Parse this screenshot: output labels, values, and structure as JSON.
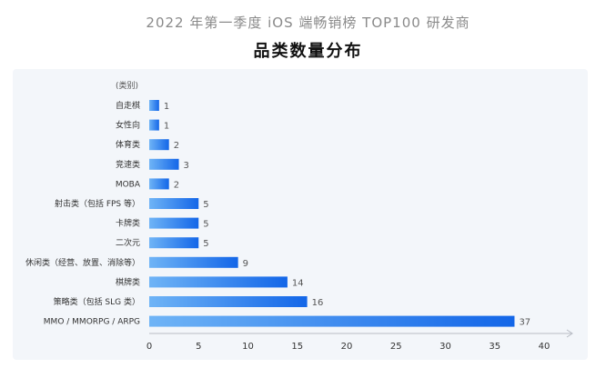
{
  "header": {
    "subtitle": "2022 年第一季度 iOS 端畅销榜 TOP100 研发商",
    "title": "品类数量分布"
  },
  "chart_data": {
    "type": "bar",
    "orientation": "horizontal",
    "title": "品类数量分布",
    "subtitle": "2022 年第一季度 iOS 端畅销榜 TOP100 研发商",
    "category_header": "(类别)",
    "categories": [
      "自走棋",
      "女性向",
      "体育类",
      "竞速类",
      "MOBA",
      "射击类（包括 FPS 等）",
      "卡牌类",
      "二次元",
      "休闲类（经营、放置、消除等）",
      "棋牌类",
      "策略类（包括 SLG 类）",
      "MMO / MMORPG / ARPG"
    ],
    "values": [
      1,
      1,
      2,
      3,
      2,
      5,
      5,
      5,
      9,
      14,
      16,
      37
    ],
    "xlim": [
      0,
      40
    ],
    "xticks": [
      0,
      5,
      10,
      15,
      20,
      25,
      30,
      35,
      40
    ],
    "xlabel": "",
    "ylabel": "",
    "grid": false,
    "colors": {
      "bar_start": "#6fb4f6",
      "bar_end": "#1366e8",
      "axis": "#b8bcc4"
    }
  }
}
